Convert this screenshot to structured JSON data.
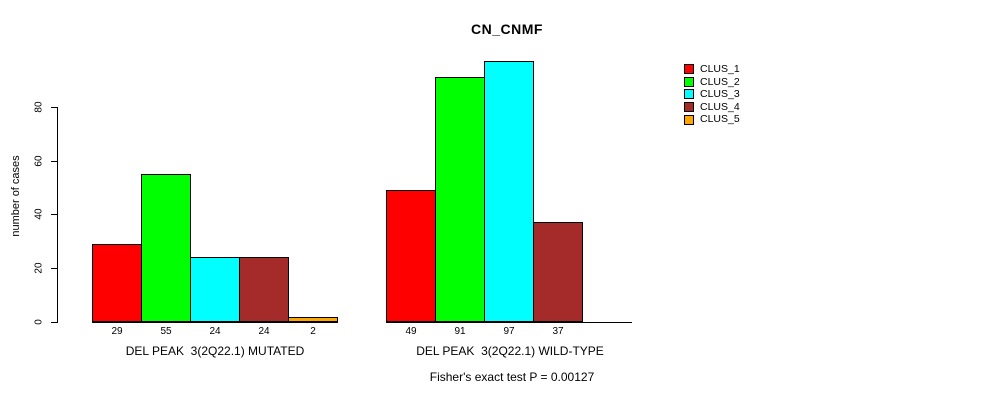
{
  "chart_data": {
    "type": "bar",
    "title": "CN_CNMF",
    "ylabel": "number of cases",
    "xlabel": "",
    "ylim": [
      0,
      80
    ],
    "yticks": [
      0,
      20,
      40,
      60,
      80
    ],
    "grid": false,
    "legend_position": "top-right",
    "clusters": [
      {
        "name": "CLUS_1",
        "color": "#FF0000"
      },
      {
        "name": "CLUS_2",
        "color": "#00FF00"
      },
      {
        "name": "CLUS_3",
        "color": "#00FFFF"
      },
      {
        "name": "CLUS_4",
        "color": "#A52A2A"
      },
      {
        "name": "CLUS_5",
        "color": "#FFA500"
      }
    ],
    "groups": [
      {
        "label": "DEL PEAK  3(2Q22.1) MUTATED",
        "values": [
          29,
          55,
          24,
          24,
          2
        ],
        "bar_labels": [
          "29",
          "55",
          "24",
          "24",
          "2"
        ]
      },
      {
        "label": "DEL PEAK  3(2Q22.1) WILD-TYPE",
        "values": [
          49,
          91,
          97,
          37,
          0
        ],
        "bar_labels": [
          "49",
          "91",
          "97",
          "37",
          ""
        ]
      }
    ],
    "annotation": "Fisher's exact test P = 0.00127"
  }
}
